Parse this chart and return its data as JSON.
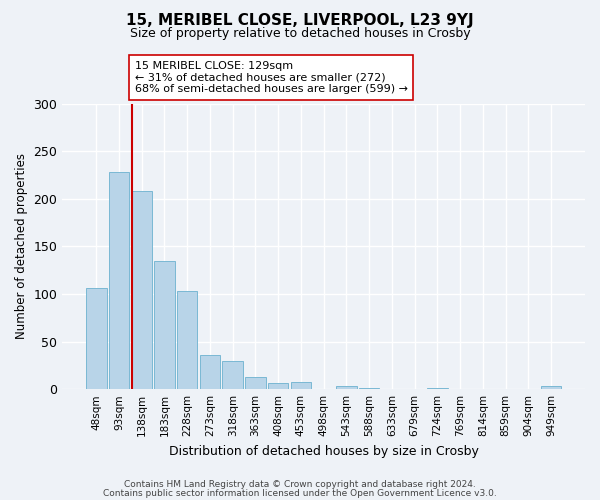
{
  "title1": "15, MERIBEL CLOSE, LIVERPOOL, L23 9YJ",
  "title2": "Size of property relative to detached houses in Crosby",
  "xlabel": "Distribution of detached houses by size in Crosby",
  "ylabel": "Number of detached properties",
  "bar_labels": [
    "48sqm",
    "93sqm",
    "138sqm",
    "183sqm",
    "228sqm",
    "273sqm",
    "318sqm",
    "363sqm",
    "408sqm",
    "453sqm",
    "498sqm",
    "543sqm",
    "588sqm",
    "633sqm",
    "679sqm",
    "724sqm",
    "769sqm",
    "814sqm",
    "859sqm",
    "904sqm",
    "949sqm"
  ],
  "bar_values": [
    106,
    228,
    208,
    135,
    103,
    36,
    30,
    13,
    6,
    8,
    0,
    3,
    1,
    0,
    0,
    1,
    0,
    0,
    0,
    0,
    3
  ],
  "bar_color": "#b8d4e8",
  "bar_edge_color": "#7ab8d4",
  "vline_x_index": 2,
  "vline_color": "#cc0000",
  "annotation_title": "15 MERIBEL CLOSE: 129sqm",
  "annotation_line1": "← 31% of detached houses are smaller (272)",
  "annotation_line2": "68% of semi-detached houses are larger (599) →",
  "annotation_box_color": "#ffffff",
  "annotation_box_edge": "#cc0000",
  "ylim": [
    0,
    300
  ],
  "yticks": [
    0,
    50,
    100,
    150,
    200,
    250,
    300
  ],
  "footer1": "Contains HM Land Registry data © Crown copyright and database right 2024.",
  "footer2": "Contains public sector information licensed under the Open Government Licence v3.0.",
  "background_color": "#eef2f7"
}
